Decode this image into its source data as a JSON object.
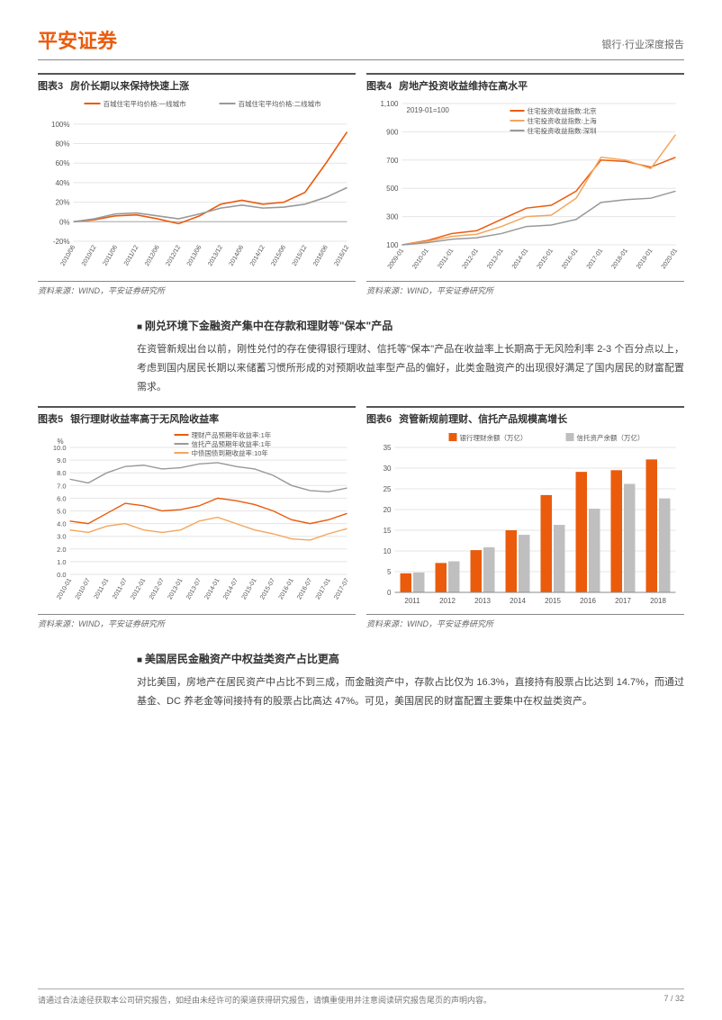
{
  "brand": {
    "text": "平安证券",
    "color": "#ea5b0c"
  },
  "header_right": "银行·行业深度报告",
  "colors": {
    "orange": "#ea5b0c",
    "orange_light": "#f5a55c",
    "grey": "#999999",
    "grey_light": "#bfbfbf",
    "axis": "#888888",
    "grid": "#e5e5e5",
    "text": "#555555"
  },
  "chart3": {
    "num": "图表3",
    "title": "房价长期以来保持快速上涨",
    "legend": [
      {
        "label": "百城住宅平均价格:一线城市",
        "color": "#ea5b0c"
      },
      {
        "label": "百城住宅平均价格:二线城市",
        "color": "#999999"
      }
    ],
    "xticks": [
      "2010/06",
      "2010/12",
      "2011/06",
      "2011/12",
      "2012/06",
      "2012/12",
      "2013/06",
      "2013/12",
      "2014/06",
      "2014/12",
      "2015/06",
      "2015/12",
      "2016/06",
      "2016/12"
    ],
    "yticks": [
      -20,
      0,
      20,
      40,
      60,
      80,
      100
    ],
    "ylim": [
      -20,
      110
    ],
    "series_tier1": [
      0,
      2,
      6,
      7,
      3,
      -2,
      6,
      18,
      22,
      18,
      20,
      30,
      60,
      92
    ],
    "series_tier2": [
      0,
      3,
      8,
      9,
      6,
      3,
      8,
      14,
      17,
      14,
      15,
      18,
      25,
      35
    ],
    "source": "资料来源：WIND，平安证券研究所"
  },
  "chart4": {
    "num": "图表4",
    "title": "房地产投资收益维持在高水平",
    "base_label": "2019-01=100",
    "legend": [
      {
        "label": "住宅投资收益指数:北京",
        "color": "#ea5b0c"
      },
      {
        "label": "住宅投资收益指数:上海",
        "color": "#f5a55c"
      },
      {
        "label": "住宅投资收益指数:深圳",
        "color": "#999999"
      }
    ],
    "xticks": [
      "2009-01",
      "2010-01",
      "2011-01",
      "2012-01",
      "2013-01",
      "2014-01",
      "2015-01",
      "2016-01",
      "2017-01",
      "2018-01",
      "2019-01",
      "2020-01"
    ],
    "yticks": [
      100,
      300,
      500,
      700,
      900,
      1100
    ],
    "ylim": [
      100,
      1100
    ],
    "series_bj": [
      100,
      130,
      180,
      200,
      280,
      360,
      380,
      480,
      700,
      690,
      650,
      720
    ],
    "series_sh": [
      100,
      125,
      160,
      175,
      230,
      300,
      310,
      430,
      720,
      700,
      640,
      880
    ],
    "series_sz": [
      100,
      115,
      140,
      150,
      180,
      230,
      240,
      280,
      400,
      420,
      430,
      480
    ],
    "source": "资料来源：WIND，平安证券研究所"
  },
  "section1": {
    "heading": "刚兑环境下金融资产集中在存款和理财等\"保本\"产品",
    "body": "在资管新规出台以前，刚性兑付的存在使得银行理财、信托等\"保本\"产品在收益率上长期高于无风险利率 2-3 个百分点以上，考虑到国内居民长期以来储蓄习惯所形成的对预期收益率型产品的偏好，此类金融资产的出现很好满足了国内居民的财富配置需求。"
  },
  "chart5": {
    "num": "图表5",
    "title": "银行理财收益率高于无风险收益率",
    "y_unit": "%",
    "legend": [
      {
        "label": "理财产品预期年收益率:1年",
        "color": "#ea5b0c"
      },
      {
        "label": "信托产品预期年收益率:1年",
        "color": "#999999"
      },
      {
        "label": "中债国债到期收益率:10年",
        "color": "#f5a55c"
      }
    ],
    "xticks": [
      "2010-01",
      "2010-07",
      "2011-01",
      "2011-07",
      "2012-01",
      "2012-07",
      "2013-01",
      "2013-07",
      "2014-01",
      "2014-07",
      "2015-01",
      "2015-07",
      "2016-01",
      "2016-07",
      "2017-01",
      "2017-07"
    ],
    "yticks": [
      0,
      1,
      2,
      3,
      4,
      5,
      6,
      7,
      8,
      9,
      10
    ],
    "ylim": [
      0,
      10
    ],
    "series_wm": [
      4.2,
      4.0,
      4.8,
      5.6,
      5.4,
      5.0,
      5.1,
      5.4,
      6.0,
      5.8,
      5.5,
      5.0,
      4.3,
      4.0,
      4.3,
      4.8
    ],
    "series_trust": [
      7.5,
      7.2,
      8.0,
      8.5,
      8.6,
      8.3,
      8.4,
      8.7,
      8.8,
      8.5,
      8.3,
      7.8,
      7.0,
      6.6,
      6.5,
      6.8
    ],
    "series_bond": [
      3.5,
      3.3,
      3.8,
      4.0,
      3.5,
      3.3,
      3.5,
      4.2,
      4.5,
      4.0,
      3.5,
      3.2,
      2.8,
      2.7,
      3.2,
      3.6
    ],
    "source": "资料来源：WIND，平安证券研究所"
  },
  "chart6": {
    "num": "图表6",
    "title": "资管新规前理财、信托产品规模高增长",
    "legend": [
      {
        "label": "银行理财余额（万亿）",
        "color": "#ea5b0c"
      },
      {
        "label": "信托资产余额（万亿）",
        "color": "#bfbfbf"
      }
    ],
    "xticks": [
      "2011",
      "2012",
      "2013",
      "2014",
      "2015",
      "2016",
      "2017",
      "2018"
    ],
    "yticks": [
      0,
      5,
      10,
      15,
      20,
      25,
      30,
      35
    ],
    "ylim": [
      0,
      35
    ],
    "series_wm": [
      4.6,
      7.1,
      10.2,
      15.0,
      23.5,
      29.1,
      29.5,
      32.1
    ],
    "series_trust": [
      4.8,
      7.5,
      10.9,
      13.9,
      16.3,
      20.2,
      26.2,
      22.7
    ],
    "source": "资料来源：WIND，平安证券研究所"
  },
  "section2": {
    "heading": "美国居民金融资产中权益类资产占比更高",
    "body": "对比美国，房地产在居民资产中占比不到三成，而金融资产中，存款占比仅为 16.3%，直接持有股票占比达到 14.7%，而通过基金、DC 养老金等间接持有的股票占比高达 47%。可见，美国居民的财富配置主要集中在权益类资产。"
  },
  "footer": {
    "left": "请通过合法途径获取本公司研究报告，如经由未经许可的渠道获得研究报告，请慎重使用并注意阅读研究报告尾页的声明内容。",
    "right": "7 / 32"
  }
}
